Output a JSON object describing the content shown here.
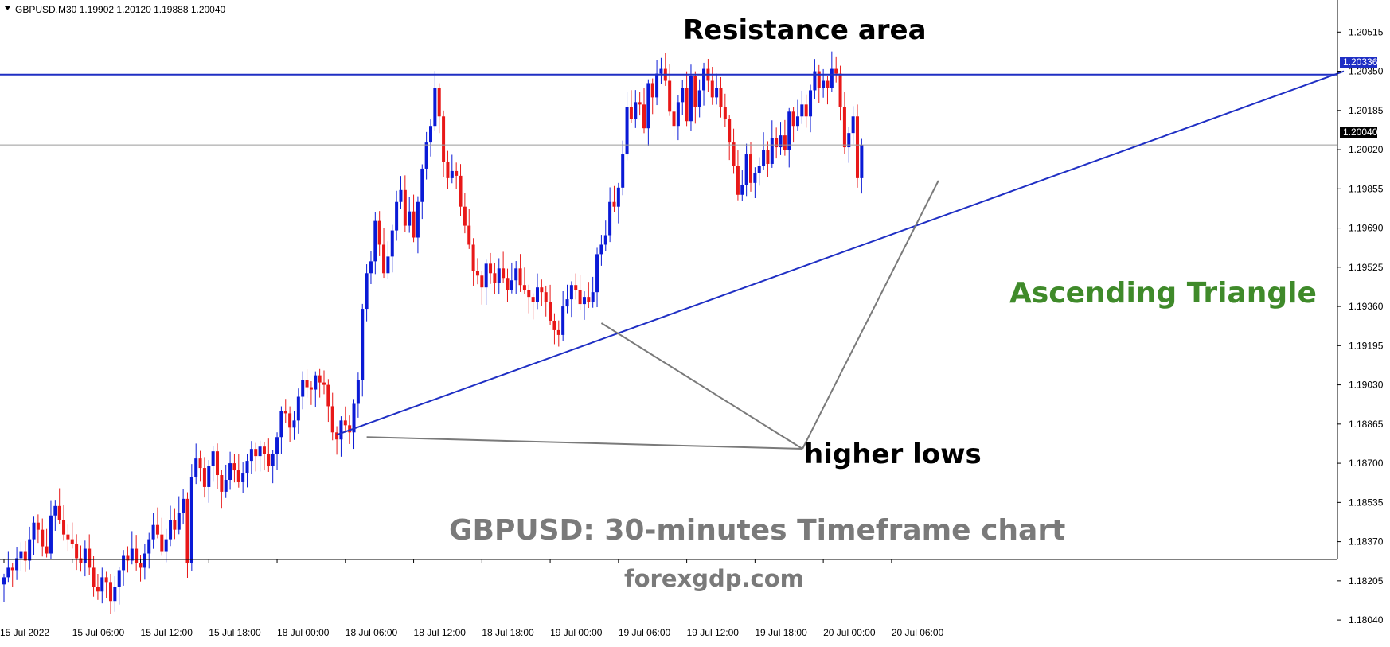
{
  "chart_data": {
    "type": "candlestick",
    "symbol_header": "GBPUSD,M30  1.19902 1.20120 1.19888 1.20040",
    "ylim": [
      1.1797,
      1.2065
    ],
    "y_ticks": [
      "1.20515",
      "1.20350",
      "1.20185",
      "1.20020",
      "1.19855",
      "1.19690",
      "1.19525",
      "1.19360",
      "1.19195",
      "1.19030",
      "1.18865",
      "1.18700",
      "1.18535",
      "1.18370",
      "1.18205",
      "1.18040"
    ],
    "x_ticks": [
      {
        "bar": 0,
        "label": "15 Jul 2022"
      },
      {
        "bar": 16,
        "label": "15 Jul 06:00"
      },
      {
        "bar": 32,
        "label": "15 Jul 12:00"
      },
      {
        "bar": 48,
        "label": "15 Jul 18:00"
      },
      {
        "bar": 64,
        "label": "18 Jul 00:00"
      },
      {
        "bar": 80,
        "label": "18 Jul 06:00"
      },
      {
        "bar": 96,
        "label": "18 Jul 12:00"
      },
      {
        "bar": 112,
        "label": "18 Jul 18:00"
      },
      {
        "bar": 128,
        "label": "19 Jul 00:00"
      },
      {
        "bar": 144,
        "label": "19 Jul 06:00"
      },
      {
        "bar": 160,
        "label": "19 Jul 12:00"
      },
      {
        "bar": 176,
        "label": "19 Jul 18:00"
      },
      {
        "bar": 192,
        "label": "20 Jul 00:00"
      },
      {
        "bar": 208,
        "label": "20 Jul 06:00"
      }
    ],
    "close_series": [
      1.1822,
      1.1826,
      1.1825,
      1.183,
      1.1833,
      1.1829,
      1.1838,
      1.1845,
      1.1842,
      1.1835,
      1.1832,
      1.1848,
      1.1852,
      1.1846,
      1.184,
      1.1838,
      1.1836,
      1.183,
      1.1828,
      1.1834,
      1.1826,
      1.1818,
      1.1816,
      1.1822,
      1.182,
      1.1812,
      1.1818,
      1.1825,
      1.1831,
      1.1829,
      1.1834,
      1.1828,
      1.1826,
      1.1832,
      1.1838,
      1.1844,
      1.184,
      1.1833,
      1.1838,
      1.1846,
      1.1842,
      1.1849,
      1.1855,
      1.1828,
      1.1864,
      1.1872,
      1.1868,
      1.186,
      1.1869,
      1.1875,
      1.1865,
      1.1858,
      1.1863,
      1.187,
      1.1867,
      1.1862,
      1.1866,
      1.1871,
      1.1876,
      1.1873,
      1.1877,
      1.1874,
      1.1869,
      1.1874,
      1.1881,
      1.1892,
      1.1891,
      1.1885,
      1.1888,
      1.1898,
      1.1905,
      1.1902,
      1.1901,
      1.1907,
      1.1904,
      1.1903,
      1.1894,
      1.1883,
      1.188,
      1.1888,
      1.1886,
      1.1883,
      1.1895,
      1.1905,
      1.1935,
      1.195,
      1.1955,
      1.1972,
      1.1962,
      1.195,
      1.1957,
      1.1968,
      1.198,
      1.1985,
      1.197,
      1.1976,
      1.1965,
      1.198,
      1.1994,
      1.2005,
      1.2012,
      1.2028,
      1.2016,
      1.1997,
      1.199,
      1.1993,
      1.1991,
      1.1978,
      1.197,
      1.1962,
      1.1951,
      1.1949,
      1.1944,
      1.1954,
      1.195,
      1.1946,
      1.1952,
      1.1948,
      1.1943,
      1.1947,
      1.1952,
      1.1945,
      1.1943,
      1.194,
      1.1938,
      1.1944,
      1.1942,
      1.1938,
      1.193,
      1.1926,
      1.1924,
      1.1936,
      1.1939,
      1.1945,
      1.1943,
      1.1937,
      1.194,
      1.1938,
      1.1942,
      1.1958,
      1.1962,
      1.1966,
      1.198,
      1.1978,
      1.1986,
      1.2,
      1.202,
      1.2015,
      1.2022,
      1.2021,
      1.2011,
      1.203,
      1.2024,
      1.2034,
      1.2036,
      1.2031,
      1.2018,
      1.2012,
      1.2022,
      1.2028,
      1.2014,
      1.2033,
      1.202,
      1.2027,
      1.2036,
      1.2031,
      1.2024,
      1.2028,
      1.202,
      1.2015,
      1.2005,
      1.1995,
      1.1983,
      1.1987,
      1.2,
      1.1988,
      1.1992,
      1.1995,
      1.2002,
      1.1996,
      1.2007,
      1.2003,
      1.2008,
      1.2002,
      1.2018,
      1.2012,
      1.2016,
      1.2021,
      1.2016,
      1.2027,
      1.2035,
      1.2028,
      1.2031,
      1.2028,
      1.2036,
      1.2034,
      1.202,
      1.2003,
      1.2009,
      1.2016,
      1.199,
      1.2004
    ],
    "lines": {
      "resistance_level": 1.20336,
      "current_price": 1.2004,
      "trendline": {
        "start": {
          "bar": 78,
          "price": 1.1882
        },
        "end": {
          "bar": 314,
          "price": 1.2035
        }
      }
    },
    "labels": {
      "resistance_tag": "1.20336",
      "price_tag": "1.20040"
    },
    "annotations": {
      "resistance": "Resistance area",
      "pattern": "Ascending Triangle",
      "higher_lows": "higher lows",
      "subtitle": "GBPUSD: 30-minutes Timeframe chart",
      "site": "forexgdp.com"
    },
    "colors": {
      "bull": "#0a1ad6",
      "bear": "#e81818",
      "line": "#1f2fc4",
      "pattern_text": "#3f8a2a",
      "grey_text": "#7a7a7a",
      "pointer": "#7a7a7a"
    }
  }
}
